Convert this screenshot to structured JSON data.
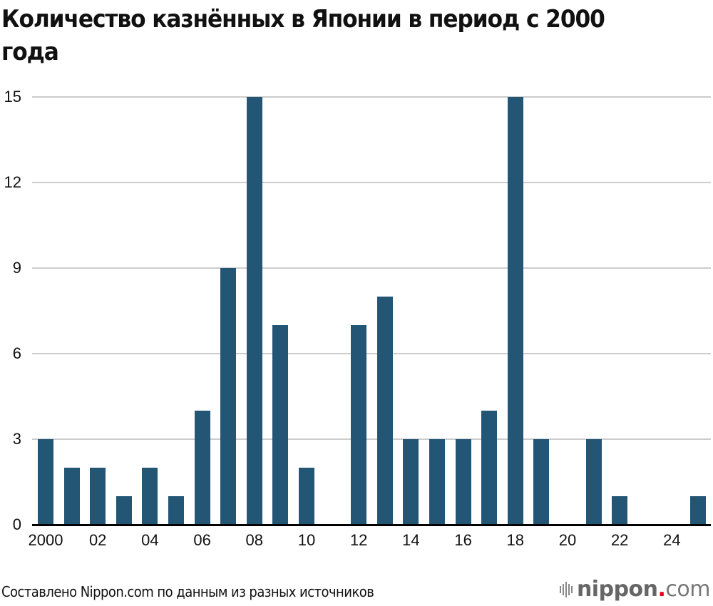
{
  "title": "Количество казнённых в Японии в период с 2000 года",
  "footer": {
    "source_note": "Составлено Nippon.com по данным из разных источников",
    "logo": {
      "name": "nippon",
      "dot": ".",
      "tld": "com"
    }
  },
  "colors": {
    "bar": "#235574",
    "grid": "#cccccc",
    "axis": "#000000",
    "logo_dot": "#e60012"
  },
  "chart_data": {
    "type": "bar",
    "title": "Количество казнённых в Японии в период с 2000 года",
    "xlabel": "",
    "ylabel": "",
    "categories": [
      "2000",
      "2001",
      "2002",
      "2003",
      "2004",
      "2005",
      "2006",
      "2007",
      "2008",
      "2009",
      "2010",
      "2011",
      "2012",
      "2013",
      "2014",
      "2015",
      "2016",
      "2017",
      "2018",
      "2019",
      "2020",
      "2021",
      "2022",
      "2023",
      "2024",
      "2025"
    ],
    "values": [
      3,
      2,
      2,
      1,
      2,
      1,
      4,
      9,
      15,
      7,
      2,
      0,
      7,
      8,
      3,
      3,
      3,
      4,
      15,
      3,
      0,
      3,
      1,
      0,
      0,
      1
    ],
    "ylim": [
      0,
      15
    ],
    "yticks": [
      "0",
      "3",
      "6",
      "9",
      "12",
      "15"
    ],
    "xtick_labels": [
      {
        "index": 0,
        "label": "2000"
      },
      {
        "index": 2,
        "label": "02"
      },
      {
        "index": 4,
        "label": "04"
      },
      {
        "index": 6,
        "label": "06"
      },
      {
        "index": 8,
        "label": "08"
      },
      {
        "index": 10,
        "label": "10"
      },
      {
        "index": 12,
        "label": "12"
      },
      {
        "index": 14,
        "label": "14"
      },
      {
        "index": 16,
        "label": "16"
      },
      {
        "index": 18,
        "label": "18"
      },
      {
        "index": 20,
        "label": "20"
      },
      {
        "index": 22,
        "label": "22"
      },
      {
        "index": 24,
        "label": "24"
      }
    ],
    "grid": true,
    "legend": null
  }
}
